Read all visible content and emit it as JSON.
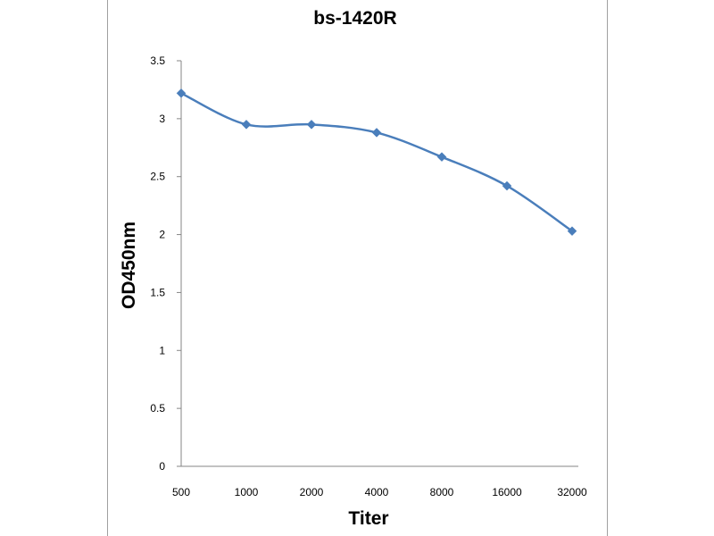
{
  "chart_data": {
    "type": "line",
    "title": "bs-1420R",
    "xlabel": "Titer",
    "ylabel": "OD450nm",
    "categories": [
      "500",
      "1000",
      "2000",
      "4000",
      "8000",
      "16000",
      "32000"
    ],
    "series": [
      {
        "values": [
          3.22,
          2.95,
          2.95,
          2.88,
          2.67,
          2.42,
          2.03
        ],
        "color": "#4a7ebb",
        "marker": "diamond",
        "smooth": true
      }
    ],
    "ylim": [
      0,
      3.5
    ],
    "yticks": [
      0,
      0.5,
      1,
      1.5,
      2,
      2.5,
      3,
      3.5
    ],
    "ytick_labels": [
      "0",
      "0.5",
      "1",
      "1.5",
      "2",
      "2.5",
      "3",
      "3.5"
    ],
    "grid": false,
    "legend": "none"
  }
}
